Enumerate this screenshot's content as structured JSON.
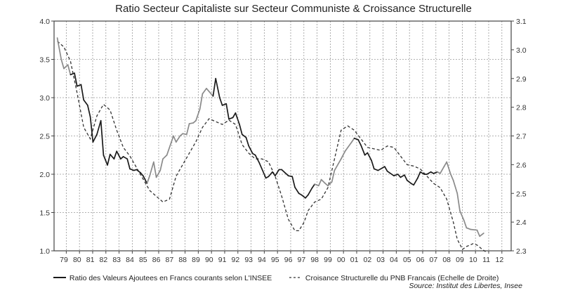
{
  "chart_data": {
    "type": "line",
    "title": "Ratio Secteur Capitaliste sur Secteur Communiste & Croissance Structurelle",
    "x_tick_labels": [
      "79",
      "80",
      "81",
      "82",
      "83",
      "84",
      "85",
      "86",
      "87",
      "88",
      "89",
      "90",
      "91",
      "92",
      "93",
      "94",
      "95",
      "96",
      "97",
      "98",
      "99",
      "00",
      "01",
      "02",
      "03",
      "04",
      "05",
      "06",
      "07",
      "08",
      "09",
      "10",
      "11",
      "12"
    ],
    "xlim": [
      1979,
      2013
    ],
    "y_left": {
      "ylim": [
        1.0,
        4.0
      ],
      "ticks": [
        "1.0",
        "1.5",
        "2.0",
        "2.5",
        "3.0",
        "3.5",
        "4.0"
      ]
    },
    "y_right": {
      "ylim": [
        2.3,
        3.1
      ],
      "ticks": [
        "2.3",
        "2.4",
        "2.5",
        "2.6",
        "2.7",
        "2.8",
        "2.9",
        "3.0",
        "3.1"
      ]
    },
    "grid": true,
    "legend_position": "bottom",
    "source": "Source: Institut des Libertes, Insee",
    "series": [
      {
        "name": "Ratio des Valeurs Ajoutees en Francs courants selon L'INSEE",
        "axis": "left",
        "style": "solid",
        "color": "#1a1a1a",
        "highlight_color": "#8a8a8a",
        "highlight_periods": [
          [
            1979.0,
            1980.0
          ],
          [
            1985.8,
            1990.8
          ],
          [
            1998.4,
            2001.4
          ],
          [
            2007.6,
            2011.5
          ]
        ],
        "x": [
          1979.0,
          1979.3,
          1979.5,
          1979.8,
          1980.0,
          1980.3,
          1980.5,
          1980.8,
          1981.0,
          1981.3,
          1981.5,
          1981.7,
          1982.0,
          1982.3,
          1982.5,
          1982.8,
          1983.0,
          1983.3,
          1983.5,
          1983.8,
          1984.0,
          1984.3,
          1984.5,
          1984.8,
          1985.0,
          1985.3,
          1985.5,
          1985.8,
          1986.0,
          1986.3,
          1986.5,
          1986.8,
          1987.0,
          1987.3,
          1987.8,
          1988.0,
          1988.3,
          1988.5,
          1988.8,
          1989.0,
          1989.3,
          1989.5,
          1989.8,
          1990.0,
          1990.3,
          1990.8,
          1991.0,
          1991.3,
          1991.5,
          1991.8,
          1992.0,
          1992.3,
          1992.5,
          1992.8,
          1993.0,
          1993.3,
          1993.5,
          1993.8,
          1994.0,
          1994.3,
          1994.8,
          1995.0,
          1995.3,
          1995.5,
          1995.8,
          1996.0,
          1996.5,
          1996.8,
          1997.0,
          1997.3,
          1997.5,
          1997.8,
          1998.0,
          1998.3,
          1998.5,
          1998.8,
          1999.0,
          1999.3,
          1999.5,
          1999.8,
          2000.0,
          2000.5,
          2000.8,
          2001.3,
          2001.5,
          2001.8,
          2002.0,
          2002.3,
          2002.5,
          2002.8,
          2003.0,
          2003.3,
          2003.8,
          2004.0,
          2004.5,
          2004.8,
          2005.0,
          2005.3,
          2005.5,
          2005.8,
          2006.0,
          2006.3,
          2006.5,
          2006.8,
          2007.0,
          2007.3,
          2007.5,
          2007.8,
          2008.0,
          2008.3,
          2008.5,
          2008.8,
          2009.0,
          2009.3,
          2009.5,
          2009.8,
          2010.0,
          2010.3,
          2010.8,
          2011.0,
          2011.3
        ],
        "y": [
          3.78,
          3.5,
          3.38,
          3.43,
          3.3,
          3.32,
          3.15,
          3.17,
          2.97,
          2.9,
          2.75,
          2.42,
          2.52,
          2.7,
          2.25,
          2.12,
          2.26,
          2.2,
          2.3,
          2.2,
          2.23,
          2.2,
          2.07,
          2.05,
          2.06,
          2.02,
          1.98,
          1.88,
          1.98,
          2.16,
          1.96,
          2.05,
          2.2,
          2.25,
          2.5,
          2.42,
          2.5,
          2.53,
          2.52,
          2.66,
          2.67,
          2.7,
          2.85,
          3.05,
          3.12,
          3.02,
          3.25,
          3.0,
          2.9,
          2.92,
          2.72,
          2.74,
          2.8,
          2.65,
          2.52,
          2.48,
          2.37,
          2.27,
          2.25,
          2.15,
          1.95,
          1.97,
          2.03,
          1.98,
          2.06,
          2.06,
          1.98,
          1.97,
          1.83,
          1.75,
          1.73,
          1.69,
          1.73,
          1.82,
          1.87,
          1.85,
          1.93,
          1.88,
          1.85,
          1.9,
          2.05,
          2.2,
          2.3,
          2.42,
          2.47,
          2.45,
          2.38,
          2.25,
          2.28,
          2.18,
          2.07,
          2.05,
          2.1,
          2.04,
          1.98,
          2.0,
          1.96,
          1.99,
          1.92,
          1.88,
          1.86,
          1.95,
          2.03,
          2.0,
          2.0,
          2.03,
          2.01,
          2.03,
          2.01,
          2.1,
          2.16,
          2.0,
          1.92,
          1.75,
          1.52,
          1.4,
          1.3,
          1.28,
          1.27,
          1.19,
          1.23
        ]
      },
      {
        "name": "Croisance Structurelle du PNB Francais (Echelle de Droite)",
        "axis": "right",
        "style": "dashed",
        "color": "#333333",
        "x": [
          1979.0,
          1979.5,
          1980.0,
          1980.5,
          1981.0,
          1981.5,
          1982.0,
          1982.5,
          1983.0,
          1983.5,
          1984.0,
          1984.5,
          1985.0,
          1985.5,
          1986.0,
          1986.5,
          1987.0,
          1987.5,
          1988.0,
          1988.5,
          1989.0,
          1989.5,
          1990.0,
          1990.5,
          1991.0,
          1991.5,
          1992.0,
          1992.5,
          1993.0,
          1993.5,
          1994.0,
          1994.5,
          1995.0,
          1995.5,
          1996.0,
          1996.5,
          1997.0,
          1997.3,
          1997.7,
          1998.0,
          1998.5,
          1999.0,
          1999.5,
          2000.0,
          2000.5,
          2001.0,
          2001.5,
          2002.0,
          2002.5,
          2003.0,
          2003.5,
          2004.0,
          2004.5,
          2005.0,
          2005.5,
          2006.0,
          2006.5,
          2007.0,
          2007.5,
          2008.0,
          2008.5,
          2009.0,
          2009.3,
          2009.7,
          2010.0,
          2010.5,
          2010.8,
          2011.2,
          2011.5
        ],
        "y": [
          3.03,
          3.01,
          2.96,
          2.85,
          2.73,
          2.69,
          2.77,
          2.81,
          2.79,
          2.72,
          2.66,
          2.63,
          2.59,
          2.55,
          2.51,
          2.49,
          2.47,
          2.48,
          2.56,
          2.6,
          2.64,
          2.68,
          2.73,
          2.76,
          2.75,
          2.74,
          2.755,
          2.74,
          2.67,
          2.64,
          2.62,
          2.62,
          2.61,
          2.56,
          2.49,
          2.41,
          2.37,
          2.37,
          2.4,
          2.44,
          2.47,
          2.48,
          2.52,
          2.62,
          2.72,
          2.735,
          2.72,
          2.69,
          2.66,
          2.655,
          2.65,
          2.665,
          2.66,
          2.63,
          2.6,
          2.595,
          2.585,
          2.56,
          2.535,
          2.52,
          2.48,
          2.4,
          2.34,
          2.305,
          2.315,
          2.325,
          2.32,
          2.305,
          2.295
        ]
      }
    ]
  }
}
